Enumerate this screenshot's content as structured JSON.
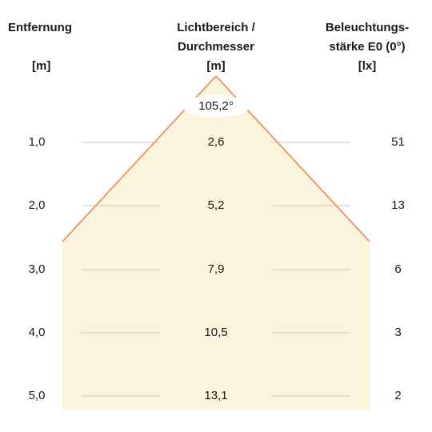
{
  "headers": {
    "distance": [
      "Entfernung",
      "[m]"
    ],
    "diameter": [
      "Lichtbereich /",
      "Durchmesser",
      "[m]"
    ],
    "illuminance": [
      "Beleuchtungs-",
      "stärke E0 (0°)",
      "[lx]"
    ]
  },
  "beam_angle": "105,2°",
  "rows": [
    {
      "distance": "1,0",
      "diameter": "2,6",
      "lux": "51"
    },
    {
      "distance": "2,0",
      "diameter": "5,2",
      "lux": "13"
    },
    {
      "distance": "3,0",
      "diameter": "7,9",
      "lux": "6"
    },
    {
      "distance": "4,0",
      "diameter": "10,5",
      "lux": "3"
    },
    {
      "distance": "5,0",
      "diameter": "13,1",
      "lux": "2"
    }
  ],
  "colors": {
    "cone_fill": "#fbf4dc",
    "cone_edge": "#ec9b6c",
    "gridline": "#c8c8c8",
    "text": "#1a1a1a"
  }
}
